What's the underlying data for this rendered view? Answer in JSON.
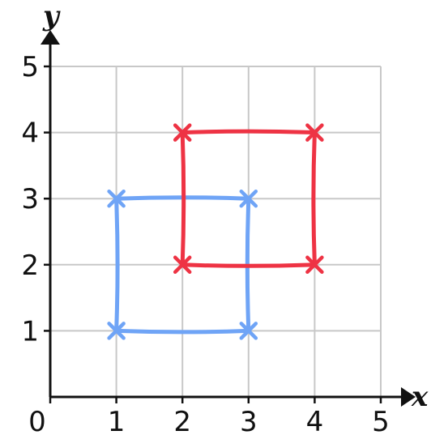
{
  "chart_data": {
    "type": "line",
    "xlabel": "x",
    "ylabel": "y",
    "xlim": [
      0,
      5
    ],
    "ylim": [
      0,
      5
    ],
    "x_ticks": [
      "0",
      "1",
      "2",
      "3",
      "4",
      "5"
    ],
    "y_ticks": [
      "1",
      "2",
      "3",
      "4",
      "5"
    ],
    "grid": true,
    "series": [
      {
        "color": "#6fa4f6",
        "points": [
          [
            1,
            3
          ],
          [
            3,
            3
          ],
          [
            3,
            1
          ],
          [
            1,
            1
          ]
        ],
        "closed": true,
        "marker": "x"
      },
      {
        "color": "#ee3344",
        "points": [
          [
            2,
            4
          ],
          [
            4,
            4
          ],
          [
            4,
            2
          ],
          [
            2,
            2
          ]
        ],
        "closed": true,
        "marker": "x"
      }
    ]
  }
}
